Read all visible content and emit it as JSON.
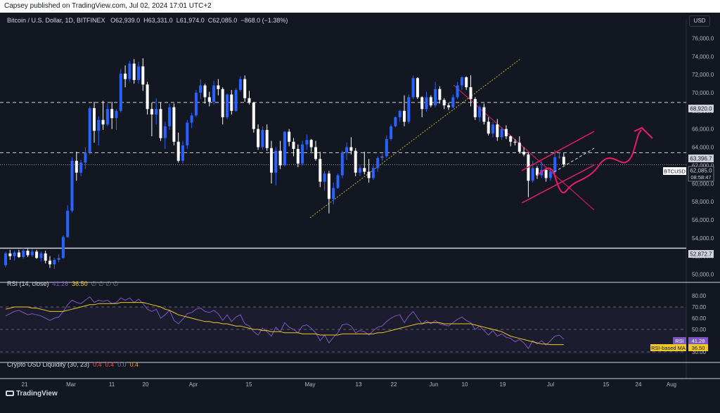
{
  "header": {
    "published": "Capsey published on TradingView.com, Jul 02, 2024 17:01 UTC+2"
  },
  "legend": {
    "symbol": "Bitcoin / U.S. Dollar, 1D, BITFINEX",
    "open": "O62,939.0",
    "high": "H63,331.0",
    "low": "L61,974.0",
    "close": "C62,085.0",
    "change": "−868.0 (−1.38%)"
  },
  "currency_label": "USD",
  "price_axis": {
    "ticks": [
      "76,000.0",
      "74,000.0",
      "72,000.0",
      "70,000.0",
      "68,000.0",
      "66,000.0",
      "64,000.0",
      "62,000.0",
      "60,000.0",
      "58,000.0",
      "56,000.0",
      "54,000.0",
      "52,000.0",
      "50,000.0"
    ],
    "level_labels": {
      "resistance_high": "68,920.0",
      "resistance_mid": "63,396.7",
      "support_low": "52,872.7",
      "current_symbol": "BTCUSD",
      "current_price": "62,085.0",
      "countdown": "08:58:47"
    }
  },
  "rsi": {
    "title": "RSI (14, close)",
    "value": "41.28",
    "ma_value": "36.50",
    "placeholders": "∅ ∅ ∅ ∅",
    "ticks": [
      "80.00",
      "70.00",
      "60.00",
      "50.00",
      "40.00",
      "30.00"
    ],
    "badge_label": "RSI",
    "badge_value": "41.28",
    "ma_badge_label": "RSI-based MA",
    "ma_badge_value": "36.50",
    "colors": {
      "rsi": "#7e57c2",
      "ma": "#f0c929"
    }
  },
  "liquidity": {
    "title": "Crypto USD Liquidity (30, 23)",
    "v1": "0.4",
    "v2": "0.4",
    "v3": "0.0",
    "v4": "0.4"
  },
  "time_axis": {
    "labels": [
      "21",
      "Mar",
      "11",
      "20",
      "Apr",
      "15",
      "May",
      "13",
      "22",
      "Jun",
      "10",
      "19",
      "Jul",
      "15",
      "24",
      "Aug"
    ]
  },
  "branding": {
    "logo_text": "TradingView"
  },
  "colors": {
    "background": "#131722",
    "up": "#2962ff",
    "down": "#ffffff",
    "annotation": "#e91e63",
    "trendline": "#b5b52e"
  },
  "chart_data": {
    "type": "candlestick",
    "title": "Bitcoin / U.S. Dollar, 1D, BITFINEX",
    "ylim": [
      49500,
      77500
    ],
    "candles": [
      [
        51000,
        52500,
        50800,
        52300
      ],
      [
        52300,
        52700,
        51600,
        52000
      ],
      [
        52000,
        52600,
        51500,
        52400
      ],
      [
        52400,
        52700,
        51800,
        51900
      ],
      [
        51900,
        52900,
        51700,
        52600
      ],
      [
        52600,
        52800,
        51900,
        52100
      ],
      [
        52100,
        52800,
        51900,
        52500
      ],
      [
        52500,
        52700,
        51700,
        51800
      ],
      [
        51800,
        52500,
        51400,
        52300
      ],
      [
        52300,
        52600,
        51200,
        51500
      ],
      [
        51500,
        52000,
        50700,
        51100
      ],
      [
        51100,
        51800,
        50600,
        51600
      ],
      [
        51600,
        52200,
        51300,
        51800
      ],
      [
        51800,
        54300,
        51700,
        54100
      ],
      [
        54100,
        57600,
        54000,
        57000
      ],
      [
        57000,
        62900,
        56800,
        62500
      ],
      [
        62500,
        63500,
        60300,
        61200
      ],
      [
        61200,
        62600,
        60800,
        62300
      ],
      [
        62300,
        64000,
        61600,
        63400
      ],
      [
        63400,
        68500,
        63200,
        68300
      ],
      [
        68300,
        69000,
        64500,
        65800
      ],
      [
        65800,
        67400,
        64200,
        67000
      ],
      [
        67000,
        69100,
        65900,
        66500
      ],
      [
        66500,
        68800,
        66300,
        68200
      ],
      [
        68200,
        69000,
        66000,
        67200
      ],
      [
        67200,
        68200,
        65900,
        68000
      ],
      [
        68000,
        72600,
        67800,
        72100
      ],
      [
        72100,
        73000,
        70600,
        71500
      ],
      [
        71500,
        73500,
        71200,
        73200
      ],
      [
        73200,
        73700,
        71000,
        71400
      ],
      [
        71400,
        73400,
        71000,
        72900
      ],
      [
        72900,
        73800,
        70200,
        70900
      ],
      [
        70900,
        71200,
        67600,
        68200
      ],
      [
        68200,
        68900,
        65200,
        67600
      ],
      [
        67600,
        69400,
        66500,
        68200
      ],
      [
        68200,
        68900,
        64700,
        65000
      ],
      [
        65000,
        66800,
        63800,
        66300
      ],
      [
        66300,
        68800,
        65900,
        68400
      ],
      [
        68400,
        68800,
        64200,
        64600
      ],
      [
        64600,
        65600,
        62300,
        62500
      ],
      [
        62500,
        64700,
        62200,
        64200
      ],
      [
        64200,
        67000,
        63800,
        66700
      ],
      [
        66700,
        67800,
        66100,
        67500
      ],
      [
        67500,
        70300,
        67300,
        70000
      ],
      [
        70000,
        71500,
        69300,
        70800
      ],
      [
        70800,
        71000,
        68800,
        69500
      ],
      [
        69500,
        70100,
        68500,
        69000
      ],
      [
        69000,
        71300,
        68700,
        70800
      ],
      [
        70800,
        71500,
        69700,
        70400
      ],
      [
        70400,
        70600,
        66500,
        67300
      ],
      [
        67300,
        69900,
        67100,
        69800
      ],
      [
        69800,
        70300,
        67600,
        68000
      ],
      [
        68000,
        70500,
        67900,
        70300
      ],
      [
        70300,
        71800,
        70100,
        71500
      ],
      [
        71500,
        71900,
        69000,
        69400
      ],
      [
        69400,
        70200,
        68700,
        68900
      ],
      [
        68900,
        69000,
        65600,
        66000
      ],
      [
        66000,
        66500,
        63700,
        64000
      ],
      [
        64000,
        66300,
        63700,
        65900
      ],
      [
        65900,
        66500,
        63600,
        63900
      ],
      [
        63900,
        64700,
        60000,
        61200
      ],
      [
        61200,
        64000,
        59800,
        63600
      ],
      [
        63600,
        64700,
        61600,
        62000
      ],
      [
        62000,
        65800,
        61900,
        65700
      ],
      [
        65700,
        66000,
        64100,
        64600
      ],
      [
        64600,
        65000,
        63000,
        63800
      ],
      [
        63800,
        64300,
        61800,
        62200
      ],
      [
        62200,
        64700,
        62000,
        64300
      ],
      [
        64300,
        65400,
        63700,
        64800
      ],
      [
        64800,
        64900,
        63500,
        64000
      ],
      [
        64000,
        64700,
        62500,
        62700
      ],
      [
        62700,
        63500,
        59600,
        60200
      ],
      [
        60200,
        61400,
        59200,
        61100
      ],
      [
        61100,
        61400,
        56700,
        58300
      ],
      [
        58300,
        60100,
        57700,
        59500
      ],
      [
        59500,
        61100,
        59400,
        60900
      ],
      [
        60900,
        63600,
        60600,
        63400
      ],
      [
        63400,
        64500,
        62600,
        64000
      ],
      [
        64000,
        65100,
        63200,
        63600
      ],
      [
        63600,
        63900,
        60800,
        61200
      ],
      [
        61200,
        62000,
        60800,
        61700
      ],
      [
        61700,
        63500,
        61000,
        61300
      ],
      [
        61300,
        62700,
        60100,
        60600
      ],
      [
        60600,
        62000,
        60400,
        61700
      ],
      [
        61700,
        63000,
        61300,
        62800
      ],
      [
        62800,
        63300,
        62500,
        63000
      ],
      [
        63000,
        65300,
        62800,
        64900
      ],
      [
        64900,
        66500,
        64700,
        66300
      ],
      [
        66300,
        67400,
        66200,
        67300
      ],
      [
        67300,
        68100,
        66800,
        68000
      ],
      [
        68000,
        69700,
        66300,
        66800
      ],
      [
        66800,
        69800,
        66600,
        69500
      ],
      [
        69500,
        71900,
        69300,
        71600
      ],
      [
        71600,
        71700,
        69300,
        69500
      ],
      [
        69500,
        69600,
        67300,
        68200
      ],
      [
        68200,
        70100,
        67900,
        69500
      ],
      [
        69500,
        69700,
        68400,
        68600
      ],
      [
        68600,
        71200,
        68400,
        70400
      ],
      [
        70400,
        70700,
        68800,
        69200
      ],
      [
        69200,
        69400,
        68200,
        68600
      ],
      [
        68600,
        68900,
        68100,
        68400
      ],
      [
        68400,
        69800,
        68300,
        69500
      ],
      [
        69500,
        71200,
        69300,
        70800
      ],
      [
        70800,
        71800,
        70300,
        71700
      ],
      [
        71700,
        71800,
        70300,
        70600
      ],
      [
        70600,
        71900,
        68500,
        69300
      ],
      [
        69300,
        69500,
        67000,
        67300
      ],
      [
        67300,
        68600,
        66800,
        68400
      ],
      [
        68400,
        68800,
        66500,
        66800
      ],
      [
        66800,
        67300,
        65300,
        65500
      ],
      [
        65500,
        66800,
        65100,
        66500
      ],
      [
        66500,
        67100,
        64700,
        65100
      ],
      [
        65100,
        66200,
        64800,
        66000
      ],
      [
        66000,
        66400,
        64900,
        65200
      ],
      [
        65200,
        65300,
        64100,
        64600
      ],
      [
        64600,
        64900,
        64200,
        64500
      ],
      [
        64500,
        65200,
        63300,
        63500
      ],
      [
        63500,
        64000,
        63000,
        63200
      ],
      [
        63200,
        63400,
        58500,
        60300
      ],
      [
        60300,
        62500,
        60100,
        61700
      ],
      [
        61700,
        61900,
        60500,
        60900
      ],
      [
        60900,
        62400,
        60600,
        61500
      ],
      [
        61500,
        61700,
        60200,
        60600
      ],
      [
        60600,
        61600,
        60300,
        61300
      ],
      [
        61300,
        63700,
        61100,
        62900
      ],
      [
        62900,
        63400,
        62700,
        62939
      ],
      [
        62939,
        63331,
        61974,
        62085
      ]
    ],
    "horizontal_levels": [
      68920,
      63396.7,
      52872.7,
      62085
    ],
    "rsi": {
      "ylim": [
        25,
        85
      ],
      "bands": [
        70,
        50,
        30
      ],
      "rsi_values": [
        62,
        64,
        66,
        67,
        65,
        63,
        64,
        63,
        62,
        60,
        58,
        60,
        61,
        66,
        72,
        76,
        74,
        73,
        76,
        79,
        74,
        76,
        75,
        76,
        73,
        74,
        78,
        76,
        78,
        74,
        77,
        73,
        68,
        66,
        68,
        60,
        63,
        67,
        58,
        55,
        59,
        64,
        65,
        68,
        69,
        66,
        65,
        67,
        64,
        58,
        63,
        57,
        61,
        63,
        55,
        53,
        48,
        45,
        51,
        48,
        44,
        52,
        48,
        56,
        52,
        50,
        47,
        53,
        54,
        51,
        47,
        40,
        45,
        38,
        43,
        47,
        54,
        55,
        53,
        47,
        49,
        48,
        45,
        49,
        52,
        53,
        57,
        60,
        62,
        63,
        56,
        62,
        66,
        60,
        55,
        58,
        55,
        58,
        55,
        54,
        53,
        56,
        59,
        61,
        58,
        56,
        50,
        53,
        49,
        45,
        49,
        44,
        46,
        43,
        42,
        39,
        41,
        38,
        33,
        40,
        37,
        40,
        36,
        40,
        44,
        45,
        41.28
      ],
      "ma_values": [
        68,
        69,
        70,
        70,
        70,
        70,
        69,
        69,
        68,
        67,
        66,
        66,
        66,
        66,
        67,
        68,
        69,
        70,
        71,
        72,
        72,
        73,
        73,
        73,
        73,
        73,
        74,
        74,
        74,
        74,
        74,
        74,
        73,
        72,
        71,
        70,
        68,
        67,
        65,
        63,
        62,
        61,
        60,
        59,
        58,
        57,
        57,
        56,
        56,
        55,
        55,
        54,
        53,
        53,
        52,
        51,
        50,
        50,
        49,
        49,
        48,
        48,
        48,
        47,
        47,
        47,
        47,
        46,
        46,
        46,
        46,
        45,
        45,
        45,
        45,
        45,
        46,
        46,
        46,
        46,
        46,
        46,
        46,
        46,
        47,
        47,
        48,
        49,
        50,
        51,
        52,
        53,
        54,
        55,
        55,
        56,
        56,
        56,
        56,
        55,
        55,
        55,
        55,
        55,
        55,
        55,
        54,
        53,
        52,
        51,
        50,
        49,
        48,
        46,
        44,
        43,
        42,
        41,
        40,
        39,
        38,
        37,
        37,
        36.5,
        36.5,
        36.5,
        36.5
      ]
    }
  }
}
